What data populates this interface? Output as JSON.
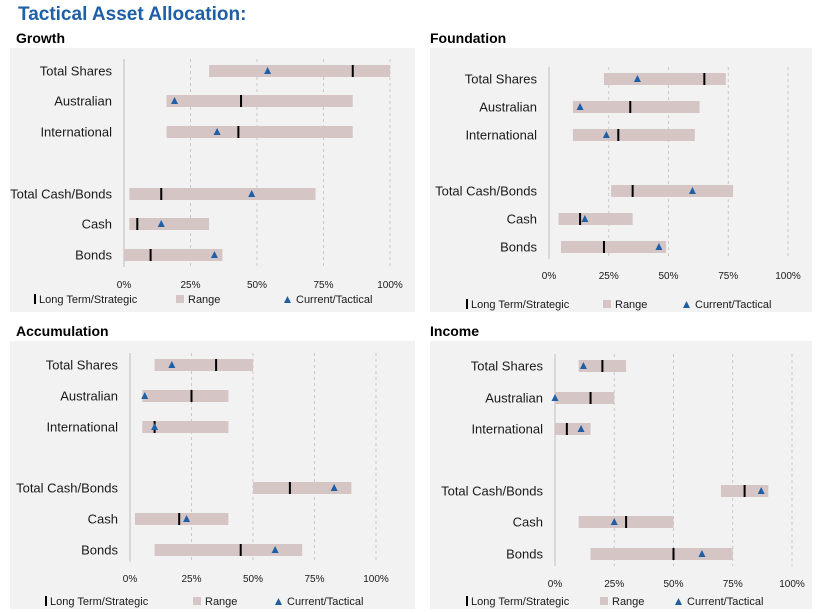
{
  "title": "Tactical Asset Allocation:",
  "legend": {
    "strategic": "Long Term/Strategic",
    "range": "Range",
    "tactical": "Current/Tactical"
  },
  "colors": {
    "title": "#1f5fa6",
    "range": "#d5c5c5",
    "strategic": "#000000",
    "tactical": "#1f5fa6",
    "panel": "#f2f2f2",
    "grid": "#c8c8c8"
  },
  "chart_data": [
    {
      "type": "bar",
      "title": "Growth",
      "categories": [
        "Total Shares",
        "Australian",
        "International",
        "Total Cash/Bonds",
        "Cash",
        "Bonds"
      ],
      "range_min": [
        0.32,
        0.16,
        0.16,
        0.02,
        0.02,
        0.0
      ],
      "range_max": [
        1.0,
        0.86,
        0.86,
        0.72,
        0.32,
        0.37
      ],
      "strategic": [
        0.86,
        0.44,
        0.43,
        0.14,
        0.05,
        0.1
      ],
      "tactical": [
        0.54,
        0.19,
        0.35,
        0.48,
        0.14,
        0.34
      ],
      "x_ticks": [
        "0%",
        "25%",
        "50%",
        "75%",
        "100%"
      ],
      "xlim": [
        0,
        1
      ],
      "grid": true,
      "legend_position": "bottom"
    },
    {
      "type": "bar",
      "title": "Foundation",
      "categories": [
        "Total Shares",
        "Australian",
        "International",
        "Total Cash/Bonds",
        "Cash",
        "Bonds"
      ],
      "range_min": [
        0.23,
        0.1,
        0.1,
        0.26,
        0.04,
        0.05
      ],
      "range_max": [
        0.74,
        0.63,
        0.61,
        0.77,
        0.35,
        0.49
      ],
      "strategic": [
        0.65,
        0.34,
        0.29,
        0.35,
        0.13,
        0.23
      ],
      "tactical": [
        0.37,
        0.13,
        0.24,
        0.6,
        0.15,
        0.46
      ],
      "x_ticks": [
        "0%",
        "25%",
        "50%",
        "75%",
        "100%"
      ],
      "xlim": [
        0,
        1
      ],
      "grid": true,
      "legend_position": "bottom"
    },
    {
      "type": "bar",
      "title": "Accumulation",
      "categories": [
        "Total Shares",
        "Australian",
        "International",
        "Total Cash/Bonds",
        "Cash",
        "Bonds"
      ],
      "range_min": [
        0.1,
        0.05,
        0.05,
        0.5,
        0.02,
        0.1
      ],
      "range_max": [
        0.5,
        0.4,
        0.4,
        0.9,
        0.4,
        0.7
      ],
      "strategic": [
        0.35,
        0.25,
        0.1,
        0.65,
        0.2,
        0.45
      ],
      "tactical": [
        0.17,
        0.06,
        0.1,
        0.83,
        0.23,
        0.59
      ],
      "x_ticks": [
        "0%",
        "25%",
        "50%",
        "75%",
        "100%"
      ],
      "xlim": [
        0,
        1
      ],
      "grid": true,
      "legend_position": "bottom"
    },
    {
      "type": "bar",
      "title": "Income",
      "categories": [
        "Total Shares",
        "Australian",
        "International",
        "Total Cash/Bonds",
        "Cash",
        "Bonds"
      ],
      "range_min": [
        0.1,
        0.0,
        0.0,
        0.7,
        0.1,
        0.15
      ],
      "range_max": [
        0.3,
        0.25,
        0.15,
        0.9,
        0.5,
        0.75
      ],
      "strategic": [
        0.2,
        0.15,
        0.05,
        0.8,
        0.3,
        0.5
      ],
      "tactical": [
        0.12,
        0.0,
        0.11,
        0.87,
        0.25,
        0.62
      ],
      "x_ticks": [
        "0%",
        "25%",
        "50%",
        "75%",
        "100%"
      ],
      "xlim": [
        0,
        1
      ],
      "grid": true,
      "legend_position": "bottom"
    }
  ]
}
